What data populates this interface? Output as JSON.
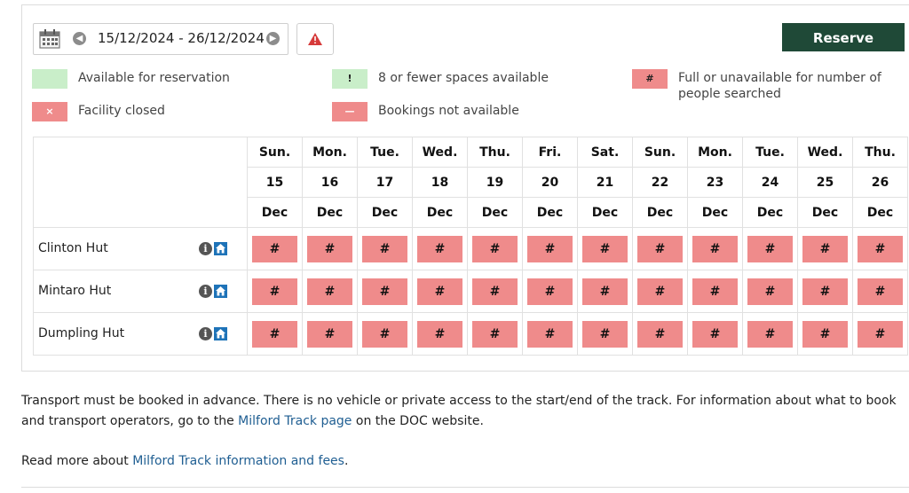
{
  "date_picker": {
    "range": "15/12/2024 - 26/12/2024",
    "prev_icon": "chevron-left-icon",
    "next_icon": "chevron-right-icon",
    "calendar_icon": "calendar-icon"
  },
  "warning_button": {
    "icon": "warning-triangle-icon"
  },
  "reserve_button": {
    "label": "Reserve",
    "color": "#1f4937"
  },
  "legend": {
    "available": {
      "label": "Available for reservation",
      "color": "#c9eec9"
    },
    "few_spaces": {
      "symbol": "!",
      "label": "8 or fewer spaces available",
      "color": "#c9eec9"
    },
    "full": {
      "symbol": "#",
      "label": "Full or unavailable for number of people searched",
      "color": "#ef8b8b"
    },
    "closed": {
      "symbol": "×",
      "label": "Facility closed",
      "color": "#ef8b8b"
    },
    "not_available": {
      "symbol": "—",
      "label": "Bookings not available",
      "color": "#ef8b8b"
    }
  },
  "days": [
    {
      "dow": "Sun.",
      "day": "15",
      "month": "Dec"
    },
    {
      "dow": "Mon.",
      "day": "16",
      "month": "Dec"
    },
    {
      "dow": "Tue.",
      "day": "17",
      "month": "Dec"
    },
    {
      "dow": "Wed.",
      "day": "18",
      "month": "Dec"
    },
    {
      "dow": "Thu.",
      "day": "19",
      "month": "Dec"
    },
    {
      "dow": "Fri.",
      "day": "20",
      "month": "Dec"
    },
    {
      "dow": "Sat.",
      "day": "21",
      "month": "Dec"
    },
    {
      "dow": "Sun.",
      "day": "22",
      "month": "Dec"
    },
    {
      "dow": "Mon.",
      "day": "23",
      "month": "Dec"
    },
    {
      "dow": "Tue.",
      "day": "24",
      "month": "Dec"
    },
    {
      "dow": "Wed.",
      "day": "25",
      "month": "Dec"
    },
    {
      "dow": "Thu.",
      "day": "26",
      "month": "Dec"
    }
  ],
  "huts": [
    {
      "name": "Clinton Hut",
      "availability": [
        "#",
        "#",
        "#",
        "#",
        "#",
        "#",
        "#",
        "#",
        "#",
        "#",
        "#",
        "#"
      ]
    },
    {
      "name": "Mintaro Hut",
      "availability": [
        "#",
        "#",
        "#",
        "#",
        "#",
        "#",
        "#",
        "#",
        "#",
        "#",
        "#",
        "#"
      ]
    },
    {
      "name": "Dumpling Hut",
      "availability": [
        "#",
        "#",
        "#",
        "#",
        "#",
        "#",
        "#",
        "#",
        "#",
        "#",
        "#",
        "#"
      ]
    }
  ],
  "transport_note": {
    "text_before": "Transport must be booked in advance. There is no vehicle or private access to the start/end of the track. For information about what to book and transport operators, go to the ",
    "link": "Milford Track page",
    "text_after": " on the DOC website."
  },
  "read_more": {
    "text_before": "Read more about ",
    "link": "Milford Track information and fees",
    "text_after": "."
  }
}
